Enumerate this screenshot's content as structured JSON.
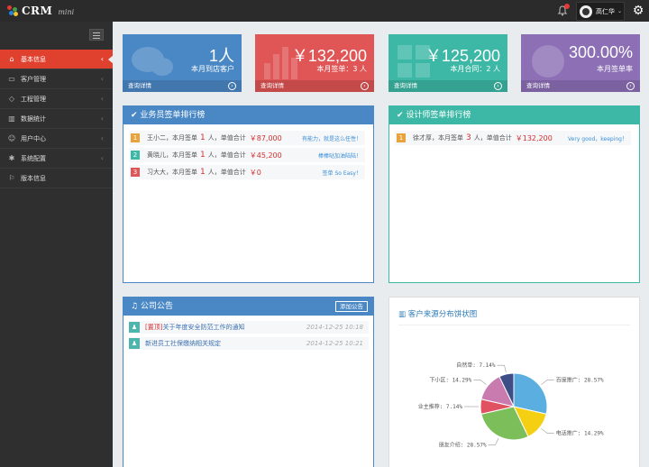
{
  "app": {
    "logo": "CRM",
    "logo_sub": "mini"
  },
  "header": {
    "user_name": "高仁华",
    "user_caret": "⌄"
  },
  "sidebar": {
    "items": [
      {
        "label": "基本信息",
        "icon": "home-icon"
      },
      {
        "label": "客户管理",
        "icon": "monitor-icon"
      },
      {
        "label": "工程管理",
        "icon": "tag-icon"
      },
      {
        "label": "数据统计",
        "icon": "bar-chart-icon"
      },
      {
        "label": "用户中心",
        "icon": "user-icon"
      },
      {
        "label": "系统配置",
        "icon": "gear-icon"
      },
      {
        "label": "版本信息",
        "icon": "flag-icon"
      }
    ]
  },
  "stats": [
    {
      "value": "1人",
      "desc": "本月到店客户",
      "link": "查询详情",
      "color": "#4a88c5"
    },
    {
      "value": "￥132,200",
      "desc": "本月签单：3 人",
      "link": "查询详情",
      "color": "#e05555"
    },
    {
      "value": "￥125,200",
      "desc": "本月合同：2 人",
      "link": "查询详情",
      "color": "#3db8a6"
    },
    {
      "value": "300.00%",
      "desc": "本月签单率",
      "link": "查询详情",
      "color": "#8c6fb5"
    }
  ],
  "sales_rank": {
    "title": "业务员签单排行榜",
    "rows": [
      {
        "rank": "1",
        "name": "王小二",
        "pre": "，本月签单",
        "count": "1",
        "mid": "人，单值合计",
        "amount": "￥87,000",
        "note": "有能力，就是这么任性！"
      },
      {
        "rank": "2",
        "name": "黄晓儿",
        "pre": "，本月签单",
        "count": "1",
        "mid": "人，单值合计",
        "amount": "￥45,200",
        "note": "棒棒哒加油陆陆！"
      },
      {
        "rank": "3",
        "name": "习大大",
        "pre": "，本月签单",
        "count": "1",
        "mid": "人，单值合计",
        "amount": "￥0",
        "note": "签单 So Easy！"
      }
    ]
  },
  "designer_rank": {
    "title": "设计师签单排行榜",
    "rows": [
      {
        "rank": "1",
        "name": "徐才厚",
        "pre": "，本月签单",
        "count": "3",
        "mid": "人，单值合计",
        "amount": "￥132,200",
        "note": "Very good，keeping！"
      }
    ]
  },
  "notices": {
    "title": "公司公告",
    "add_label": "添加公告",
    "items": [
      {
        "tag": "[置顶]",
        "title": "关于年度安全防范工作的通知",
        "date": "2014-12-25 10:18"
      },
      {
        "tag": "",
        "title": "新进员工社保缴纳相关规定",
        "date": "2014-12-25 10:21"
      }
    ]
  },
  "chart_data": {
    "type": "pie",
    "title": "客户来源分布饼状图",
    "labels": [
      "百度推广",
      "电话推广",
      "朋友介绍",
      "业主推荐",
      "下小区",
      "自然单"
    ],
    "values": [
      28.57,
      14.29,
      28.57,
      7.14,
      14.29,
      7.14
    ],
    "label_texts": [
      "百度推广: 28.57%",
      "电话推广: 14.29%",
      "朋友介绍: 28.57%",
      "业主推荐: 7.14%",
      "下小区: 14.29%",
      "自然单: 7.14%"
    ],
    "colors": [
      "#5aaee0",
      "#f5cf12",
      "#7cbf5a",
      "#e05262",
      "#c97bb0",
      "#3d4f86"
    ]
  }
}
